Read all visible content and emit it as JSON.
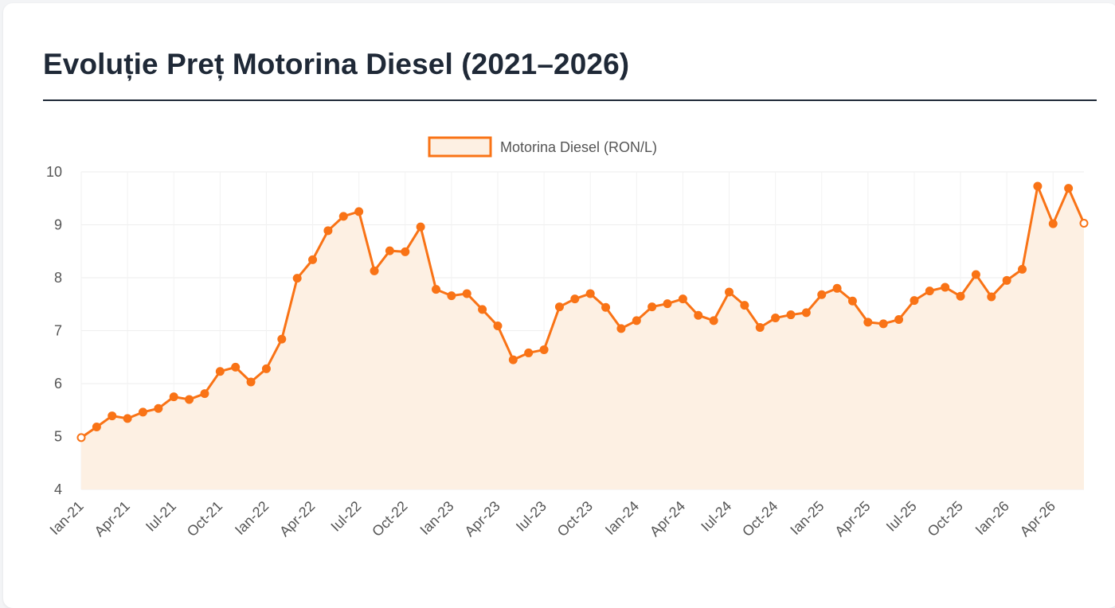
{
  "page": {
    "title": "Evoluție Preț Motorina Diesel (2021–2026)"
  },
  "chart_data": {
    "type": "line",
    "title": "Evoluție Preț Motorina Diesel (2021–2026)",
    "xlabel": "",
    "ylabel": "",
    "ylim": [
      4,
      10
    ],
    "yticks": [
      4,
      5,
      6,
      7,
      8,
      9,
      10
    ],
    "x_tick_labels": [
      "Ian-21",
      "Apr-21",
      "Iul-21",
      "Oct-21",
      "Ian-22",
      "Apr-22",
      "Iul-22",
      "Oct-22",
      "Ian-23",
      "Apr-23",
      "Iul-23",
      "Oct-23",
      "Ian-24",
      "Apr-24",
      "Iul-24",
      "Oct-24",
      "Ian-25",
      "Apr-25",
      "Iul-25",
      "Oct-25",
      "Ian-26",
      "Apr-26"
    ],
    "legend_position": "top-center",
    "grid": true,
    "fill_area": true,
    "colors": {
      "line": "#f97316",
      "fill": "#fdf0e3"
    },
    "categories": [
      "2021-01",
      "2021-02",
      "2021-03",
      "2021-04",
      "2021-05",
      "2021-06",
      "2021-07",
      "2021-08",
      "2021-09",
      "2021-10",
      "2021-11",
      "2021-12",
      "2022-01",
      "2022-02",
      "2022-03",
      "2022-04",
      "2022-05",
      "2022-06",
      "2022-07",
      "2022-08",
      "2022-09",
      "2022-10",
      "2022-11",
      "2022-12",
      "2023-01",
      "2023-02",
      "2023-03",
      "2023-04",
      "2023-05",
      "2023-06",
      "2023-07",
      "2023-08",
      "2023-09",
      "2023-10",
      "2023-11",
      "2023-12",
      "2024-01",
      "2024-02",
      "2024-03",
      "2024-04",
      "2024-05",
      "2024-06",
      "2024-07",
      "2024-08",
      "2024-09",
      "2024-10",
      "2024-11",
      "2024-12",
      "2025-01",
      "2025-02",
      "2025-03",
      "2025-04",
      "2025-05",
      "2025-06",
      "2025-07",
      "2025-08",
      "2025-09",
      "2025-10",
      "2025-11",
      "2025-12",
      "2026-01",
      "2026-02",
      "2026-03",
      "2026-04",
      "2026-05",
      "2026-06"
    ],
    "series": [
      {
        "name": "Motorina Diesel (RON/L)",
        "values": [
          4.98,
          5.18,
          5.39,
          5.34,
          5.46,
          5.53,
          5.75,
          5.7,
          5.81,
          6.23,
          6.31,
          6.03,
          6.28,
          6.84,
          7.99,
          8.34,
          8.89,
          9.16,
          9.25,
          8.13,
          8.51,
          8.49,
          8.96,
          7.78,
          7.66,
          7.7,
          7.4,
          7.09,
          6.45,
          6.58,
          6.64,
          7.45,
          7.6,
          7.7,
          7.44,
          7.04,
          7.19,
          7.45,
          7.51,
          7.6,
          7.29,
          7.19,
          7.73,
          7.48,
          7.06,
          7.24,
          7.3,
          7.34,
          7.68,
          7.8,
          7.56,
          7.16,
          7.13,
          7.21,
          7.57,
          7.75,
          7.82,
          7.65,
          8.06,
          7.64,
          7.95,
          8.16,
          9.73,
          9.02,
          9.69,
          9.03
        ]
      }
    ]
  }
}
